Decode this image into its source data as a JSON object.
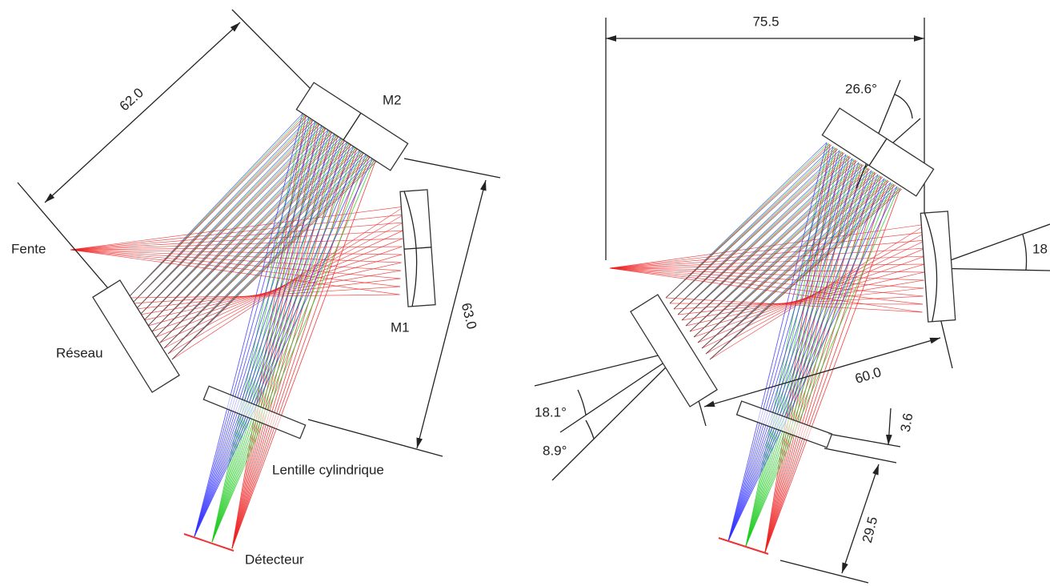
{
  "left": {
    "labels": {
      "m2": "M2",
      "slit": "Fente",
      "m1": "M1",
      "grating": "Réseau",
      "lens": "Lentille cylindrique",
      "detector": "Détecteur"
    },
    "dimensions": {
      "grating_to_m2": "62.0",
      "m2_to_lens": "63.0"
    }
  },
  "right": {
    "dimensions": {
      "width": "75.5",
      "m2_angle": "26.6°",
      "m1_angle": "18",
      "grating_to_m1": "60.0",
      "angle_a": "18.1°",
      "angle_b": "8.9°",
      "lens_thickness": "3.6",
      "lens_to_detector": "29.5"
    }
  }
}
